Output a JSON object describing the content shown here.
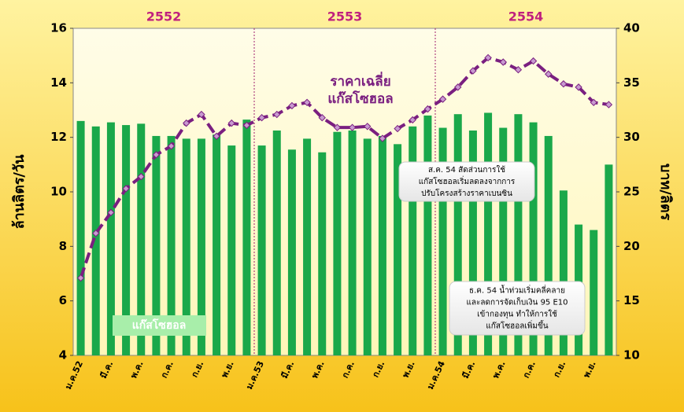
{
  "chart_data": {
    "type": "bar_line",
    "y_label": "ล้านลิตร/วัน",
    "y2_label": "บาท/ลิตร",
    "year_groups": [
      "2552",
      "2553",
      "2554"
    ],
    "categories": [
      "ม.ค.52",
      null,
      "มี.ค.",
      null,
      "พ.ค.",
      null,
      "ก.ค.",
      null,
      "ก.ย.",
      null,
      "พ.ย.",
      null,
      "ม.ค.53",
      null,
      "มี.ค.",
      null,
      "พ.ค.",
      null,
      "ก.ค.",
      null,
      "ก.ย.",
      null,
      "พ.ย.",
      null,
      "ม.ค.54",
      null,
      "มี.ค.",
      null,
      "พ.ค.",
      null,
      "ก.ค.",
      null,
      "ก.ย.",
      null,
      "พ.ย.",
      null
    ],
    "series": [
      {
        "name": "แก๊สโซฮอล",
        "color": "#1aa84a",
        "type": "bar",
        "values": [
          12.6,
          12.4,
          12.55,
          12.45,
          12.5,
          12.05,
          12.05,
          11.95,
          11.95,
          12.1,
          11.7,
          12.65,
          11.7,
          12.25,
          11.55,
          11.95,
          11.45,
          12.2,
          12.25,
          11.95,
          12.05,
          11.75,
          12.4,
          12.8,
          12.35,
          12.85,
          12.25,
          12.9,
          12.35,
          12.85,
          12.55,
          12.05,
          10.05,
          8.8,
          8.6,
          11.0
        ]
      },
      {
        "color": "#7a1f80",
        "type": "line",
        "axis": "y2",
        "values": [
          17.1,
          21.2,
          23.1,
          25.3,
          26.4,
          28.4,
          29.2,
          31.3,
          32.1,
          30.1,
          31.3,
          31.1,
          31.8,
          32.1,
          32.9,
          33.2,
          31.8,
          30.9,
          30.9,
          31.0,
          29.9,
          30.8,
          31.6,
          32.6,
          33.5,
          34.6,
          36.1,
          37.3,
          36.9,
          36.2,
          37.0,
          35.8,
          34.9,
          34.6,
          33.2,
          33.0
        ]
      }
    ],
    "line_label": [
      "ราคาเฉลี่ย",
      "แก๊สโซฮอล"
    ],
    "annotations": [
      [
        "ส.ค. 54 สัดส่วนการใช้",
        "แก๊สโซฮอลเริ่มลดลงจากการ",
        "ปรับโครงสร้างราคาเบนซิน"
      ],
      [
        "ธ.ค. 54 น้ำท่วมเริ่มคลี่คลาย",
        "และลดการจัดเก็บเงิน 95 E10",
        "เข้ากองทุน ทำให้การใช้",
        "แก๊สโซฮอลเพิ่มขึ้น"
      ]
    ],
    "ylim": [
      4,
      16
    ],
    "yticks": [
      4,
      6,
      8,
      10,
      12,
      14,
      16
    ],
    "y2lim": [
      10,
      40
    ],
    "y2ticks": [
      10,
      15,
      20,
      25,
      30,
      35,
      40
    ]
  }
}
